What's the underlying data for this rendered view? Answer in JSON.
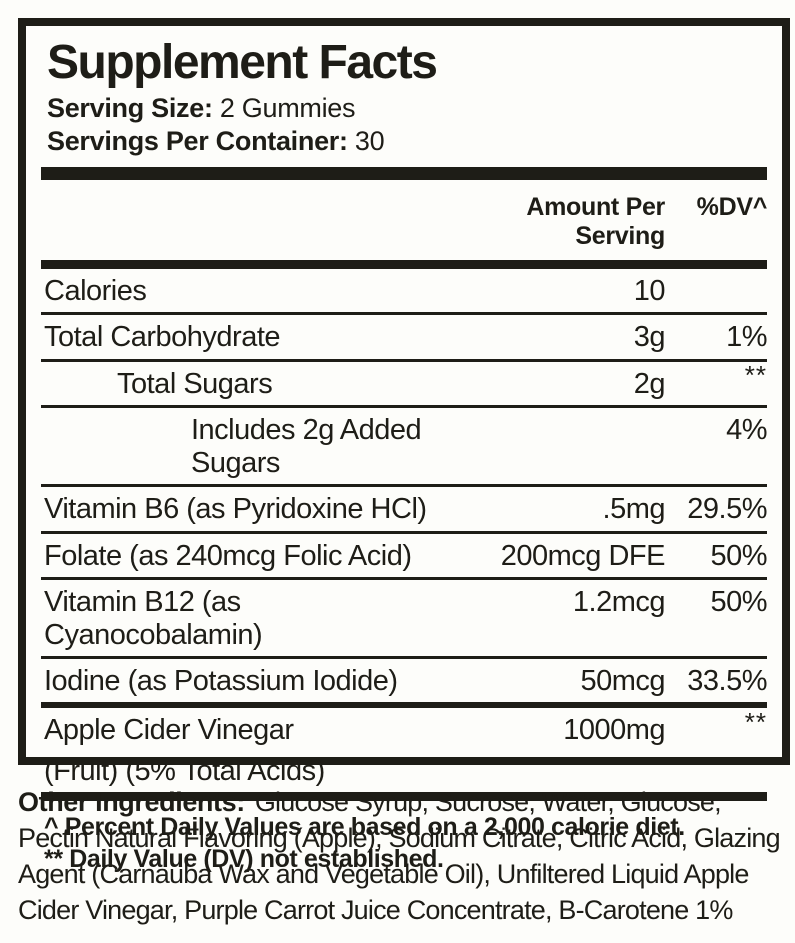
{
  "label": {
    "title": "Supplement Facts",
    "serving_size": {
      "label": "Serving Size:",
      "value": "2 Gummies"
    },
    "servings_per_container": {
      "label": "Servings Per Container:",
      "value": "30"
    },
    "columns": {
      "amount": "Amount Per Serving",
      "dv": "%DV^"
    },
    "rows": [
      {
        "name": "Calories",
        "amount": "10",
        "dv": "",
        "indent": 0,
        "sep_after": "thin"
      },
      {
        "name": "Total Carbohydrate",
        "amount": "3g",
        "dv": "1%",
        "indent": 0,
        "sep_after": "thin"
      },
      {
        "name": "Total Sugars",
        "amount": "2g",
        "dv": "**",
        "indent": 1,
        "sep_after": "thin"
      },
      {
        "name": "Includes 2g Added Sugars",
        "amount": "",
        "dv": "4%",
        "indent": 2,
        "sep_after": "thin"
      },
      {
        "name": "Vitamin B6 (as Pyridoxine HCl)",
        "amount": ".5mg",
        "dv": "29.5%",
        "indent": 0,
        "sep_after": "thin"
      },
      {
        "name": "Folate (as 240mcg Folic Acid)",
        "amount": "200mcg DFE",
        "dv": "50%",
        "indent": 0,
        "sep_after": "thin"
      },
      {
        "name": "Vitamin B12 (as Cyanocobalamin)",
        "amount": "1.2mcg",
        "dv": "50%",
        "indent": 0,
        "sep_after": "thin"
      },
      {
        "name": "Iodine (as Potassium Iodide)",
        "amount": "50mcg",
        "dv": "33.5%",
        "indent": 0,
        "sep_after": "thick"
      },
      {
        "name": "Apple Cider Vinegar",
        "name2": "(Fruit) (5% Total Acids)",
        "amount": "1000mg",
        "dv": "**",
        "indent": 0,
        "sep_after": "none"
      }
    ],
    "footnotes": [
      "^ Percent Daily Values are based on a 2,000 calorie diet.",
      "** Daily Value (DV) not established."
    ],
    "other_ingredients": {
      "label": "Other Ingredients:",
      "text": "Glucose Syrup, Sucrose, Water, Glucose, Pectin Natural Flavoring (Apple), Sodium Citrate, Citric Acid, Glazing Agent (Carnauba Wax and Vegetable Oil), Unfiltered Liquid Apple Cider Vinegar, Purple Carrot Juice Concentrate, B-Carotene 1%"
    },
    "colors": {
      "text": "#1e1d17",
      "background": "#fdfdfa"
    }
  }
}
